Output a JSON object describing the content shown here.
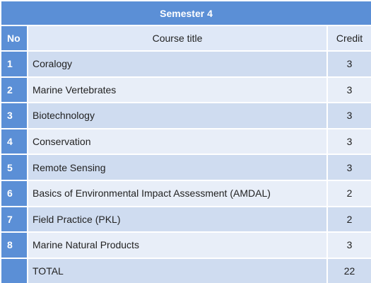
{
  "table": {
    "title": "Semester 4",
    "headers": {
      "no": "No",
      "course_title": "Course title",
      "credit": "Credit"
    },
    "rows": [
      {
        "no": "1",
        "title": "Coralogy",
        "credit": "3"
      },
      {
        "no": "2",
        "title": "Marine Vertebrates",
        "credit": "3"
      },
      {
        "no": "3",
        "title": "Biotechnology",
        "credit": "3"
      },
      {
        "no": "4",
        "title": "Conservation",
        "credit": "3"
      },
      {
        "no": "5",
        "title": "Remote Sensing",
        "credit": "3"
      },
      {
        "no": "6",
        "title": "Basics of Environmental Impact Assessment (AMDAL)",
        "credit": "2"
      },
      {
        "no": "7",
        "title": "Field Practice (PKL)",
        "credit": "2"
      },
      {
        "no": "8",
        "title": "Marine Natural Products",
        "credit": "3"
      },
      {
        "no": "",
        "title": "TOTAL",
        "credit": "22"
      }
    ]
  },
  "colors": {
    "accent": "#5b8fd6",
    "row_dark": "#cfdcf0",
    "row_light": "#e8eef8"
  }
}
